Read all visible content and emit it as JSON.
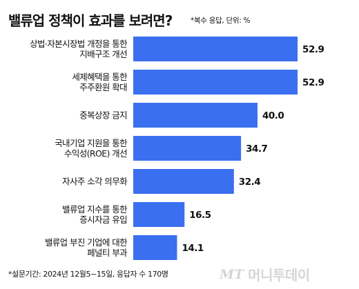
{
  "title": "밸류업 정책이 효과를 보려면?",
  "subtitle": "*복수 응답, 단위: %",
  "footnote": "*설문기간: 2024년 12월5~15일, 응답자 수 170명",
  "watermark": {
    "mark": "MT",
    "text": "머니투데이"
  },
  "colors": {
    "bar": "#3a6ff0"
  },
  "chart_data": {
    "type": "bar",
    "orientation": "horizontal",
    "title": "밸류업 정책이 효과를 보려면?",
    "unit": "%",
    "categories": [
      [
        "상법·자본시장법 개정을 통한",
        "지배구조 개선"
      ],
      [
        "세제혜택을 통한",
        "주주환원 확대"
      ],
      [
        "중복상장 금지"
      ],
      [
        "국내기업 지원을 통한",
        "수익성(ROE) 개선"
      ],
      [
        "자사주 소각 의무화"
      ],
      [
        "밸류업 지수를 통한",
        "증시자금 유입"
      ],
      [
        "밸류업 부진 기업에 대한",
        "페널티 부과"
      ]
    ],
    "value_labels": [
      "52.9",
      "52.9",
      "40.0",
      "34.7",
      "32.4",
      "16.5",
      "14.1"
    ],
    "values": [
      52.9,
      52.9,
      40.0,
      34.7,
      32.4,
      16.5,
      14.1
    ],
    "xlim": [
      0,
      60
    ],
    "grid": false,
    "legend": "none"
  }
}
